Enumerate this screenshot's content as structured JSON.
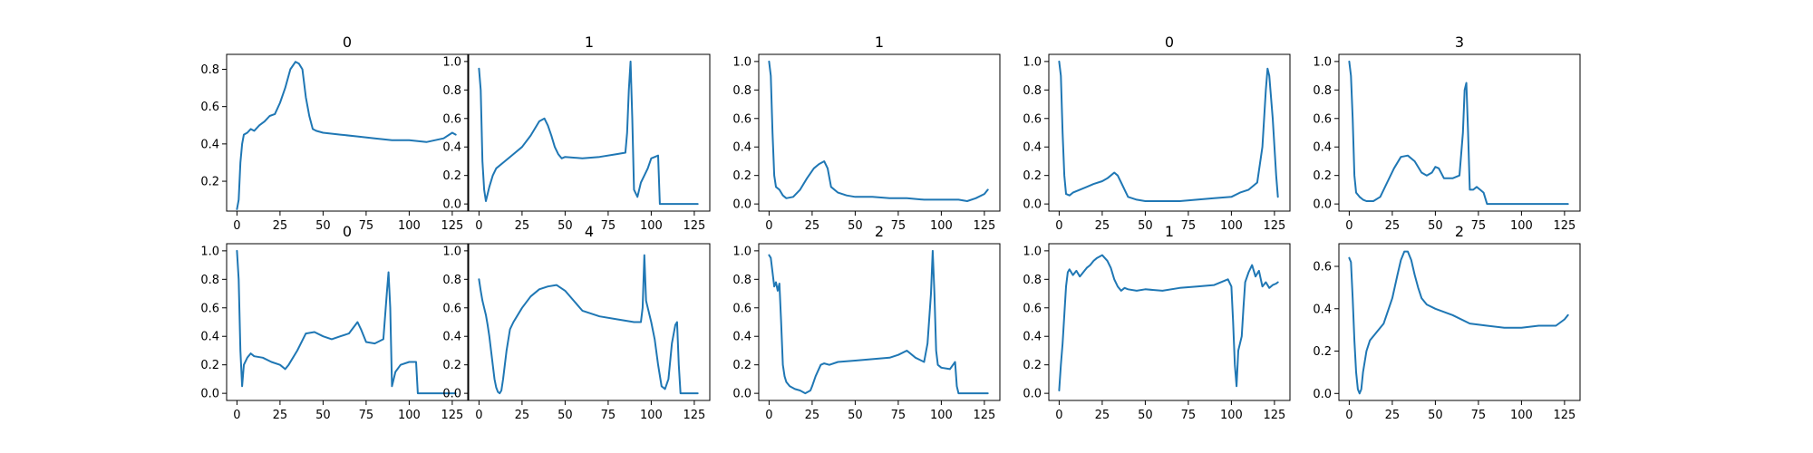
{
  "figure": {
    "line_color": "#1f77b4"
  },
  "chart_data": [
    {
      "type": "line",
      "title": "0",
      "xlim": [
        -6,
        134
      ],
      "ylim": [
        0.04,
        0.88
      ],
      "xticks": [
        0,
        25,
        50,
        75,
        100,
        125
      ],
      "yticks": [
        0.2,
        0.4,
        0.6,
        0.8
      ],
      "series": [
        {
          "x": [
            0,
            1,
            2,
            3,
            4,
            6,
            8,
            10,
            13,
            16,
            19,
            22,
            25,
            28,
            31,
            34,
            36,
            38,
            40,
            42,
            44,
            46,
            50,
            60,
            70,
            80,
            90,
            100,
            110,
            120,
            125,
            127
          ],
          "y": [
            0.05,
            0.1,
            0.3,
            0.4,
            0.45,
            0.46,
            0.48,
            0.47,
            0.5,
            0.52,
            0.55,
            0.56,
            0.62,
            0.7,
            0.8,
            0.84,
            0.83,
            0.8,
            0.65,
            0.55,
            0.48,
            0.47,
            0.46,
            0.45,
            0.44,
            0.43,
            0.42,
            0.42,
            0.41,
            0.43,
            0.46,
            0.45
          ]
        }
      ]
    },
    {
      "type": "line",
      "title": "1",
      "xlim": [
        -6,
        134
      ],
      "ylim": [
        -0.05,
        1.05
      ],
      "xticks": [
        0,
        25,
        50,
        75,
        100,
        125
      ],
      "yticks": [
        0.0,
        0.2,
        0.4,
        0.6,
        0.8,
        1.0
      ],
      "series": [
        {
          "x": [
            0,
            1,
            2,
            3,
            4,
            6,
            8,
            10,
            15,
            20,
            25,
            30,
            35,
            38,
            40,
            42,
            44,
            46,
            48,
            50,
            60,
            70,
            80,
            85,
            86,
            87,
            88,
            89,
            90,
            92,
            94,
            96,
            98,
            100,
            104,
            105,
            110,
            120,
            127
          ],
          "y": [
            0.95,
            0.8,
            0.3,
            0.1,
            0.02,
            0.12,
            0.2,
            0.25,
            0.3,
            0.35,
            0.4,
            0.48,
            0.58,
            0.6,
            0.55,
            0.48,
            0.4,
            0.35,
            0.32,
            0.33,
            0.32,
            0.33,
            0.35,
            0.36,
            0.5,
            0.8,
            1.0,
            0.6,
            0.1,
            0.05,
            0.15,
            0.2,
            0.25,
            0.32,
            0.34,
            0.0,
            0.0,
            0.0,
            0.0
          ]
        }
      ]
    },
    {
      "type": "line",
      "title": "1",
      "xlim": [
        -6,
        134
      ],
      "ylim": [
        -0.05,
        1.05
      ],
      "xticks": [
        0,
        25,
        50,
        75,
        100,
        125
      ],
      "yticks": [
        0.0,
        0.2,
        0.4,
        0.6,
        0.8,
        1.0
      ],
      "series": [
        {
          "x": [
            0,
            1,
            2,
            3,
            4,
            6,
            8,
            10,
            14,
            18,
            22,
            26,
            29,
            32,
            34,
            36,
            40,
            45,
            50,
            60,
            70,
            80,
            90,
            100,
            110,
            115,
            120,
            125,
            127
          ],
          "y": [
            1.0,
            0.9,
            0.5,
            0.2,
            0.12,
            0.1,
            0.06,
            0.04,
            0.05,
            0.1,
            0.18,
            0.25,
            0.28,
            0.3,
            0.25,
            0.12,
            0.08,
            0.06,
            0.05,
            0.05,
            0.04,
            0.04,
            0.03,
            0.03,
            0.03,
            0.02,
            0.04,
            0.07,
            0.1
          ]
        }
      ]
    },
    {
      "type": "line",
      "title": "0",
      "xlim": [
        -6,
        134
      ],
      "ylim": [
        -0.05,
        1.05
      ],
      "xticks": [
        0,
        25,
        50,
        75,
        100,
        125
      ],
      "yticks": [
        0.0,
        0.2,
        0.4,
        0.6,
        0.8,
        1.0
      ],
      "series": [
        {
          "x": [
            0,
            1,
            2,
            3,
            4,
            6,
            8,
            12,
            16,
            20,
            25,
            28,
            30,
            32,
            34,
            36,
            38,
            40,
            45,
            50,
            60,
            70,
            80,
            90,
            100,
            105,
            110,
            115,
            118,
            120,
            121,
            122,
            124,
            126,
            127
          ],
          "y": [
            1.0,
            0.9,
            0.5,
            0.2,
            0.07,
            0.06,
            0.08,
            0.1,
            0.12,
            0.14,
            0.16,
            0.18,
            0.2,
            0.22,
            0.2,
            0.15,
            0.1,
            0.05,
            0.03,
            0.02,
            0.02,
            0.02,
            0.03,
            0.04,
            0.05,
            0.08,
            0.1,
            0.15,
            0.4,
            0.8,
            0.95,
            0.9,
            0.6,
            0.2,
            0.05
          ]
        }
      ]
    },
    {
      "type": "line",
      "title": "3",
      "xlim": [
        -6,
        134
      ],
      "ylim": [
        -0.05,
        1.05
      ],
      "xticks": [
        0,
        25,
        50,
        75,
        100,
        125
      ],
      "yticks": [
        0.0,
        0.2,
        0.4,
        0.6,
        0.8,
        1.0
      ],
      "series": [
        {
          "x": [
            0,
            1,
            2,
            3,
            4,
            6,
            8,
            10,
            14,
            18,
            22,
            26,
            30,
            34,
            38,
            42,
            45,
            48,
            50,
            52,
            55,
            60,
            64,
            66,
            67,
            68,
            69,
            70,
            72,
            74,
            76,
            78,
            80,
            85,
            90,
            100,
            110,
            120,
            127
          ],
          "y": [
            1.0,
            0.9,
            0.6,
            0.2,
            0.08,
            0.05,
            0.03,
            0.02,
            0.02,
            0.05,
            0.15,
            0.25,
            0.33,
            0.34,
            0.3,
            0.22,
            0.2,
            0.22,
            0.26,
            0.25,
            0.18,
            0.18,
            0.2,
            0.5,
            0.8,
            0.85,
            0.5,
            0.1,
            0.1,
            0.12,
            0.1,
            0.08,
            0.0,
            0.0,
            0.0,
            0.0,
            0.0,
            0.0,
            0.0
          ]
        }
      ]
    },
    {
      "type": "line",
      "title": "0",
      "xlim": [
        -6,
        134
      ],
      "ylim": [
        -0.05,
        1.05
      ],
      "xticks": [
        0,
        25,
        50,
        75,
        100,
        125
      ],
      "yticks": [
        0.0,
        0.2,
        0.4,
        0.6,
        0.8,
        1.0
      ],
      "series": [
        {
          "x": [
            0,
            1,
            2,
            3,
            4,
            6,
            8,
            10,
            15,
            20,
            25,
            28,
            30,
            35,
            40,
            45,
            50,
            55,
            60,
            65,
            70,
            72,
            75,
            80,
            85,
            87,
            88,
            89,
            90,
            92,
            95,
            100,
            104,
            105,
            110,
            120,
            127
          ],
          "y": [
            1.0,
            0.8,
            0.3,
            0.05,
            0.2,
            0.25,
            0.28,
            0.26,
            0.25,
            0.22,
            0.2,
            0.17,
            0.2,
            0.3,
            0.42,
            0.43,
            0.4,
            0.38,
            0.4,
            0.42,
            0.5,
            0.45,
            0.36,
            0.35,
            0.38,
            0.7,
            0.85,
            0.6,
            0.05,
            0.15,
            0.2,
            0.22,
            0.22,
            0.0,
            0.0,
            0.0,
            0.0
          ]
        }
      ]
    },
    {
      "type": "line",
      "title": "4",
      "xlim": [
        -6,
        134
      ],
      "ylim": [
        -0.05,
        1.05
      ],
      "xticks": [
        0,
        25,
        50,
        75,
        100,
        125
      ],
      "yticks": [
        0.0,
        0.2,
        0.4,
        0.6,
        0.8,
        1.0
      ],
      "series": [
        {
          "x": [
            0,
            1,
            2,
            3,
            4,
            5,
            6,
            7,
            8,
            9,
            10,
            11,
            12,
            13,
            14,
            16,
            18,
            20,
            25,
            30,
            35,
            40,
            45,
            50,
            55,
            60,
            70,
            80,
            90,
            94,
            95,
            96,
            97,
            98,
            100,
            102,
            104,
            106,
            108,
            110,
            112,
            114,
            115,
            116,
            117,
            120,
            127
          ],
          "y": [
            0.8,
            0.72,
            0.65,
            0.6,
            0.55,
            0.48,
            0.4,
            0.3,
            0.2,
            0.1,
            0.04,
            0.01,
            0.0,
            0.02,
            0.1,
            0.3,
            0.45,
            0.5,
            0.6,
            0.68,
            0.73,
            0.75,
            0.76,
            0.72,
            0.65,
            0.58,
            0.54,
            0.52,
            0.5,
            0.5,
            0.6,
            0.97,
            0.65,
            0.6,
            0.5,
            0.38,
            0.2,
            0.05,
            0.03,
            0.1,
            0.35,
            0.48,
            0.5,
            0.2,
            0.0,
            0.0,
            0.0
          ]
        }
      ]
    },
    {
      "type": "line",
      "title": "2",
      "xlim": [
        -6,
        134
      ],
      "ylim": [
        -0.05,
        1.05
      ],
      "xticks": [
        0,
        25,
        50,
        75,
        100,
        125
      ],
      "yticks": [
        0.0,
        0.2,
        0.4,
        0.6,
        0.8,
        1.0
      ],
      "series": [
        {
          "x": [
            0,
            1,
            2,
            3,
            4,
            5,
            6,
            7,
            8,
            9,
            10,
            12,
            15,
            18,
            21,
            24,
            25,
            27,
            30,
            32,
            35,
            40,
            50,
            60,
            70,
            75,
            80,
            85,
            90,
            92,
            94,
            95,
            96,
            97,
            98,
            100,
            105,
            108,
            109,
            110,
            115,
            120,
            127
          ],
          "y": [
            0.97,
            0.95,
            0.85,
            0.75,
            0.78,
            0.72,
            0.77,
            0.5,
            0.2,
            0.12,
            0.08,
            0.05,
            0.03,
            0.02,
            0.0,
            0.02,
            0.05,
            0.12,
            0.2,
            0.21,
            0.2,
            0.22,
            0.23,
            0.24,
            0.25,
            0.27,
            0.3,
            0.25,
            0.22,
            0.35,
            0.7,
            1.0,
            0.7,
            0.3,
            0.2,
            0.18,
            0.17,
            0.22,
            0.05,
            0.0,
            0.0,
            0.0,
            0.0
          ]
        }
      ]
    },
    {
      "type": "line",
      "title": "1",
      "xlim": [
        -6,
        134
      ],
      "ylim": [
        -0.05,
        1.05
      ],
      "xticks": [
        0,
        25,
        50,
        75,
        100,
        125
      ],
      "yticks": [
        0.0,
        0.2,
        0.4,
        0.6,
        0.8,
        1.0
      ],
      "series": [
        {
          "x": [
            0,
            1,
            2,
            3,
            4,
            5,
            6,
            8,
            10,
            12,
            14,
            16,
            18,
            20,
            22,
            25,
            28,
            30,
            32,
            34,
            36,
            38,
            40,
            45,
            50,
            60,
            70,
            80,
            90,
            98,
            100,
            101,
            102,
            103,
            104,
            105,
            106,
            107,
            108,
            110,
            112,
            114,
            116,
            118,
            120,
            122,
            124,
            126,
            127
          ],
          "y": [
            0.02,
            0.2,
            0.35,
            0.55,
            0.75,
            0.85,
            0.87,
            0.83,
            0.86,
            0.82,
            0.85,
            0.88,
            0.9,
            0.93,
            0.95,
            0.97,
            0.93,
            0.88,
            0.8,
            0.75,
            0.72,
            0.74,
            0.73,
            0.72,
            0.73,
            0.72,
            0.74,
            0.75,
            0.76,
            0.8,
            0.75,
            0.5,
            0.2,
            0.05,
            0.3,
            0.35,
            0.4,
            0.6,
            0.78,
            0.85,
            0.9,
            0.82,
            0.86,
            0.75,
            0.78,
            0.74,
            0.76,
            0.77,
            0.78
          ]
        }
      ]
    },
    {
      "type": "line",
      "title": "2",
      "xlim": [
        -6,
        134
      ],
      "ylim": [
        -0.033,
        0.707
      ],
      "xticks": [
        0,
        25,
        50,
        75,
        100,
        125
      ],
      "yticks": [
        0.0,
        0.2,
        0.4,
        0.6
      ],
      "series": [
        {
          "x": [
            0,
            1,
            2,
            3,
            4,
            5,
            6,
            7,
            8,
            10,
            12,
            15,
            20,
            25,
            28,
            30,
            32,
            34,
            36,
            38,
            40,
            42,
            45,
            50,
            60,
            70,
            80,
            90,
            100,
            110,
            120,
            125,
            127
          ],
          "y": [
            0.64,
            0.62,
            0.45,
            0.25,
            0.1,
            0.02,
            0.0,
            0.02,
            0.1,
            0.2,
            0.25,
            0.28,
            0.33,
            0.45,
            0.56,
            0.63,
            0.67,
            0.67,
            0.63,
            0.56,
            0.5,
            0.45,
            0.42,
            0.4,
            0.37,
            0.33,
            0.32,
            0.31,
            0.31,
            0.32,
            0.32,
            0.35,
            0.37
          ]
        }
      ]
    }
  ]
}
